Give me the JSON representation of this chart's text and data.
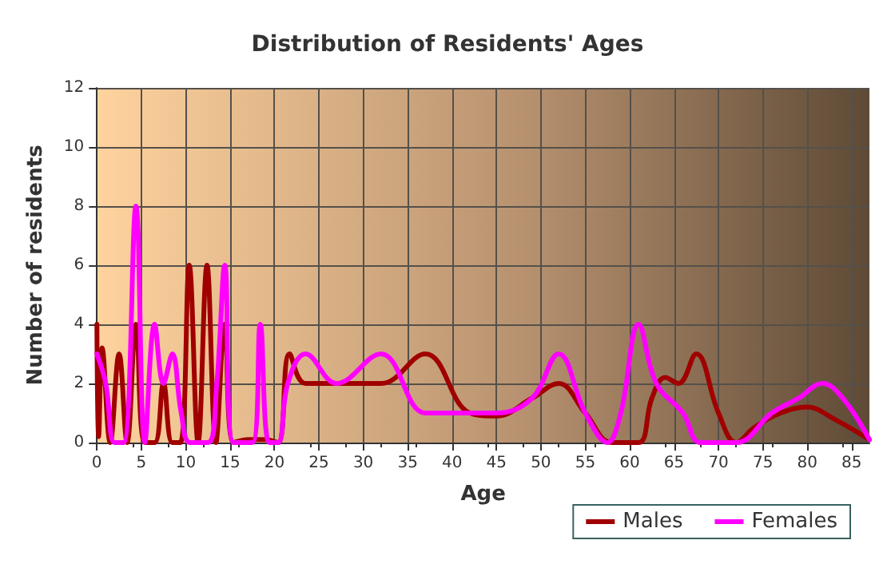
{
  "chart_data": {
    "type": "line",
    "title": "Distribution of Residents' Ages",
    "xlabel": "Age",
    "ylabel": "Number of residents",
    "xlim": [
      0,
      87
    ],
    "xticks": [
      0,
      5,
      10,
      15,
      20,
      25,
      30,
      35,
      40,
      45,
      50,
      55,
      60,
      65,
      70,
      75,
      80,
      85
    ],
    "ylim": [
      0,
      12
    ],
    "yticks": [
      0,
      2,
      4,
      6,
      8,
      10,
      12
    ],
    "grid": true,
    "legend": "bottom right",
    "marker": "none",
    "line_style": "solid",
    "series": [
      {
        "name": "Males",
        "color": "#a00000",
        "x": [
          0,
          0.2,
          0.6,
          1.5,
          2.5,
          3.4,
          4.4,
          5.4,
          6.5,
          7.5,
          8.5,
          9.4,
          10.4,
          11.4,
          12.4,
          13.4,
          14.4,
          15.4,
          17,
          19,
          20.4,
          21.7,
          23.5,
          28,
          32,
          37,
          42,
          45,
          49,
          52,
          55,
          58,
          61,
          62.5,
          64,
          65.5,
          67.5,
          70,
          72,
          74,
          77,
          80,
          83,
          87
        ],
        "values": [
          4,
          0.2,
          3.2,
          0,
          3,
          0,
          4,
          0,
          0,
          2,
          0,
          0,
          6,
          0,
          6,
          0,
          4,
          0,
          0.1,
          0.1,
          0,
          3,
          2,
          2,
          2,
          3,
          1,
          0.9,
          1.5,
          2,
          1,
          0,
          0,
          1.5,
          2.2,
          2,
          3,
          1,
          0,
          0.5,
          1,
          1.2,
          0.8,
          0.1
        ]
      },
      {
        "name": "Females",
        "color": "#ff00ff",
        "x": [
          0,
          1,
          2,
          3,
          4.4,
          5.4,
          6.5,
          7.5,
          8.5,
          9.5,
          10.5,
          12.5,
          13.5,
          14.4,
          15.4,
          17.5,
          18.4,
          19.4,
          20.4,
          21.5,
          23.5,
          27,
          32,
          37,
          40,
          45,
          49,
          52,
          55,
          57.5,
          59,
          61,
          63,
          66,
          68,
          72,
          76,
          79,
          81.7,
          84,
          87
        ],
        "values": [
          3,
          2,
          0,
          0,
          8,
          0,
          4,
          2,
          3,
          1,
          0,
          0,
          2,
          6,
          0,
          0,
          4,
          0,
          0,
          2,
          3,
          2,
          3,
          1,
          1,
          1,
          1.5,
          3,
          1,
          0,
          1,
          4,
          2,
          1,
          0,
          0,
          1,
          1.5,
          2,
          1.5,
          0.1
        ]
      }
    ]
  }
}
